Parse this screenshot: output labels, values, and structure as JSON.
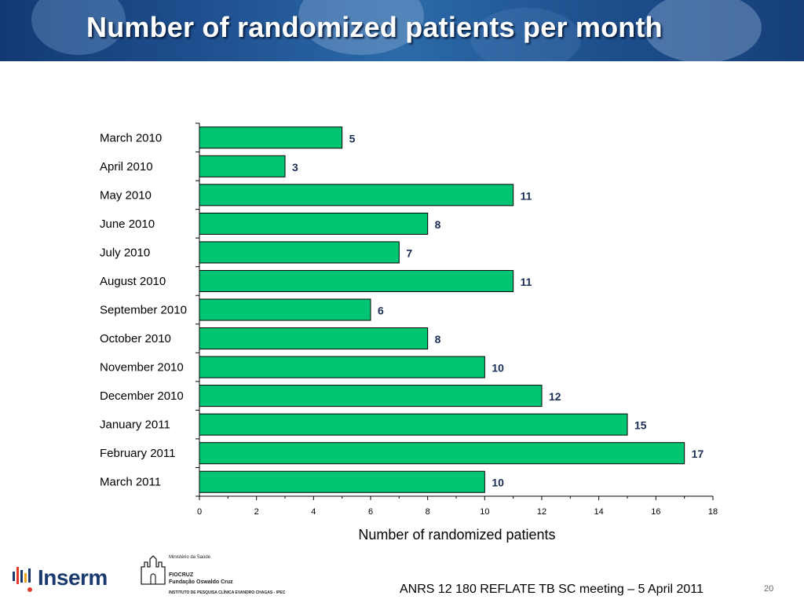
{
  "slide": {
    "title": "Number of randomized patients per month",
    "footer": "ANRS 12 180 REFLATE TB SC meeting – 5 April 2011",
    "page_number": "20"
  },
  "logos": {
    "inserm": "Inserm",
    "fiocruz_ministry": "Ministério da Saúde",
    "fiocruz_name_1": "FIOCRUZ",
    "fiocruz_name_2": "Fundação Oswaldo Cruz",
    "fiocruz_institute": "INSTITUTO DE PESQUISA CLÍNICA EVANDRO CHAGAS - IPEC"
  },
  "colors": {
    "bar_fill": "#00c673",
    "bar_stroke": "#000000",
    "banner": "#1f4f8f",
    "title_text": "#ffffff"
  },
  "chart_data": {
    "type": "bar",
    "orientation": "horizontal",
    "categories": [
      "March 2010",
      "April 2010",
      "May 2010",
      "June 2010",
      "July 2010",
      "August 2010",
      "September 2010",
      "October 2010",
      "November 2010",
      "December 2010",
      "January 2011",
      "February 2011",
      "March 2011"
    ],
    "values": [
      5,
      3,
      11,
      8,
      7,
      11,
      6,
      8,
      10,
      12,
      15,
      17,
      10
    ],
    "xlabel": "Number of randomized patients",
    "ylabel": "",
    "xlim": [
      0,
      18
    ],
    "xticks": [
      0,
      2,
      4,
      6,
      8,
      10,
      12,
      14,
      16,
      18
    ],
    "data_labels": true,
    "grid": false,
    "legend": false
  }
}
